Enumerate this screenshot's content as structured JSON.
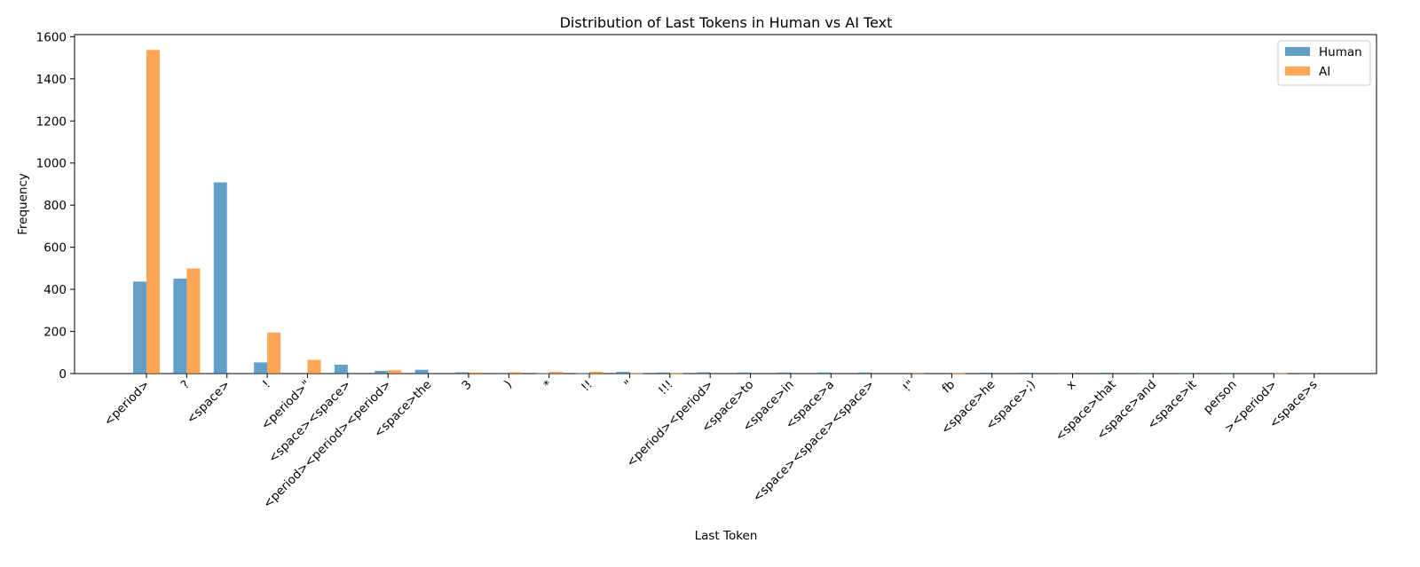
{
  "colors": {
    "Human": "#1f77b4",
    "AI": "#ff7f0e"
  },
  "chart_data": {
    "type": "bar",
    "title": "Distribution of Last Tokens in Human vs AI Text",
    "xlabel": "Last Token",
    "ylabel": "Frequency",
    "ylim": [
      0,
      1610
    ],
    "yticks": [
      0,
      200,
      400,
      600,
      800,
      1000,
      1200,
      1400,
      1600
    ],
    "legend_position": "top-right",
    "grid": false,
    "categories": [
      "<period>",
      "?",
      "<space>",
      "!",
      "<period>\"",
      "<space><space>",
      "<period><period><period>",
      "<space>the",
      "3",
      ")",
      "*",
      "!!",
      "\"",
      "!!!",
      "<period><period>",
      "<space>to",
      "<space>in",
      "<space>a",
      "<space><space><space>",
      "!\"",
      "fb",
      "<space>he",
      "<space>;)",
      "x",
      "<space>that",
      "<space>and",
      "<space>it",
      "person",
      "><period>",
      "<space>s"
    ],
    "series": [
      {
        "name": "Human",
        "values": [
          437,
          451,
          908,
          53,
          0,
          42,
          13,
          18,
          6,
          3,
          2,
          2,
          8,
          5,
          6,
          5,
          5,
          5,
          5,
          0,
          0,
          4,
          4,
          3,
          4,
          3,
          3,
          3,
          0,
          3
        ]
      },
      {
        "name": "AI",
        "values": [
          1537,
          499,
          0,
          195,
          65,
          0,
          16,
          0,
          5,
          6,
          8,
          9,
          2,
          2,
          0,
          0,
          0,
          0,
          0,
          3,
          2,
          0,
          0,
          0,
          0,
          0,
          0,
          0,
          2,
          0
        ]
      }
    ]
  }
}
